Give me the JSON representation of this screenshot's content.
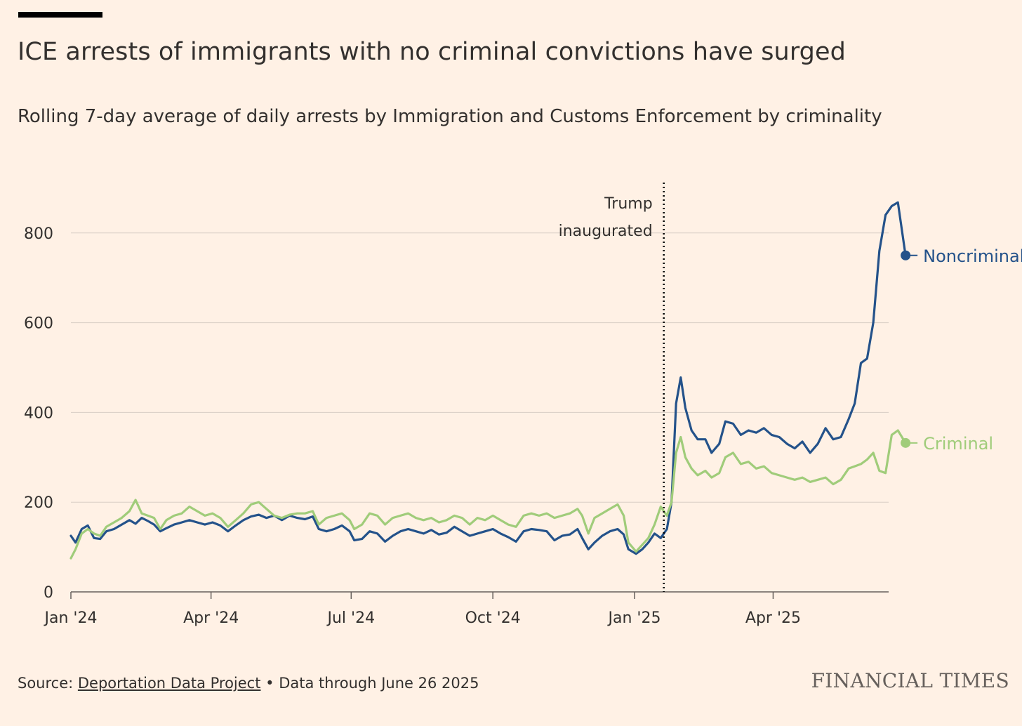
{
  "header": {
    "title": "ICE arrests of immigrants with no criminal convictions have surged",
    "subtitle": "Rolling 7-day average of daily arrests by Immigration and Customs Enforcement by criminality"
  },
  "footer": {
    "source_prefix": "Source: ",
    "source_link": "Deportation Data Project",
    "source_suffix": " • Data through June 26 2025",
    "brand": "FINANCIAL TIMES"
  },
  "chart_data": {
    "type": "line",
    "title": "ICE arrests of immigrants with no criminal convictions have surged",
    "subtitle": "Rolling 7-day average of daily arrests by Immigration and Customs Enforcement by criminality",
    "xlabel": "",
    "ylabel": "",
    "ylim": [
      0,
      900
    ],
    "xlim": [
      "2024-01-01",
      "2025-06-26"
    ],
    "yticks": [
      0,
      200,
      400,
      600,
      800
    ],
    "xticks": [
      {
        "date": "2024-01-01",
        "label": "Jan '24"
      },
      {
        "date": "2024-04-01",
        "label": "Apr '24"
      },
      {
        "date": "2024-07-01",
        "label": "Jul '24"
      },
      {
        "date": "2024-10-01",
        "label": "Oct '24"
      },
      {
        "date": "2025-01-01",
        "label": "Jan '25"
      },
      {
        "date": "2025-04-01",
        "label": "Apr '25"
      }
    ],
    "grid": true,
    "annotation": {
      "date": "2025-01-20",
      "lines": [
        "Trump",
        "inaugurated"
      ]
    },
    "series": [
      {
        "name": "Noncriminal",
        "color": "#24528a",
        "points": [
          [
            "2024-01-01",
            125
          ],
          [
            "2024-01-04",
            110
          ],
          [
            "2024-01-08",
            140
          ],
          [
            "2024-01-12",
            148
          ],
          [
            "2024-01-16",
            120
          ],
          [
            "2024-01-20",
            118
          ],
          [
            "2024-01-24",
            135
          ],
          [
            "2024-01-29",
            140
          ],
          [
            "2024-02-03",
            150
          ],
          [
            "2024-02-08",
            160
          ],
          [
            "2024-02-12",
            152
          ],
          [
            "2024-02-16",
            165
          ],
          [
            "2024-02-20",
            158
          ],
          [
            "2024-02-24",
            150
          ],
          [
            "2024-02-28",
            135
          ],
          [
            "2024-03-03",
            142
          ],
          [
            "2024-03-08",
            150
          ],
          [
            "2024-03-13",
            155
          ],
          [
            "2024-03-18",
            160
          ],
          [
            "2024-03-23",
            155
          ],
          [
            "2024-03-28",
            150
          ],
          [
            "2024-04-02",
            155
          ],
          [
            "2024-04-07",
            148
          ],
          [
            "2024-04-12",
            135
          ],
          [
            "2024-04-17",
            148
          ],
          [
            "2024-04-22",
            160
          ],
          [
            "2024-04-27",
            168
          ],
          [
            "2024-05-02",
            172
          ],
          [
            "2024-05-07",
            165
          ],
          [
            "2024-05-12",
            170
          ],
          [
            "2024-05-17",
            160
          ],
          [
            "2024-05-22",
            170
          ],
          [
            "2024-05-27",
            165
          ],
          [
            "2024-06-01",
            162
          ],
          [
            "2024-06-06",
            168
          ],
          [
            "2024-06-10",
            140
          ],
          [
            "2024-06-15",
            135
          ],
          [
            "2024-06-20",
            140
          ],
          [
            "2024-06-25",
            148
          ],
          [
            "2024-06-30",
            135
          ],
          [
            "2024-07-03",
            115
          ],
          [
            "2024-07-08",
            118
          ],
          [
            "2024-07-13",
            135
          ],
          [
            "2024-07-18",
            130
          ],
          [
            "2024-07-23",
            112
          ],
          [
            "2024-07-28",
            125
          ],
          [
            "2024-08-02",
            135
          ],
          [
            "2024-08-07",
            140
          ],
          [
            "2024-08-12",
            135
          ],
          [
            "2024-08-17",
            130
          ],
          [
            "2024-08-22",
            138
          ],
          [
            "2024-08-27",
            128
          ],
          [
            "2024-09-01",
            132
          ],
          [
            "2024-09-06",
            145
          ],
          [
            "2024-09-11",
            135
          ],
          [
            "2024-09-16",
            125
          ],
          [
            "2024-09-21",
            130
          ],
          [
            "2024-09-26",
            135
          ],
          [
            "2024-10-01",
            140
          ],
          [
            "2024-10-06",
            130
          ],
          [
            "2024-10-11",
            122
          ],
          [
            "2024-10-16",
            112
          ],
          [
            "2024-10-21",
            135
          ],
          [
            "2024-10-26",
            140
          ],
          [
            "2024-10-31",
            138
          ],
          [
            "2024-11-05",
            135
          ],
          [
            "2024-11-10",
            115
          ],
          [
            "2024-11-15",
            125
          ],
          [
            "2024-11-20",
            128
          ],
          [
            "2024-11-25",
            140
          ],
          [
            "2024-11-28",
            120
          ],
          [
            "2024-12-02",
            95
          ],
          [
            "2024-12-06",
            110
          ],
          [
            "2024-12-11",
            125
          ],
          [
            "2024-12-16",
            135
          ],
          [
            "2024-12-21",
            140
          ],
          [
            "2024-12-25",
            128
          ],
          [
            "2024-12-28",
            95
          ],
          [
            "2025-01-02",
            85
          ],
          [
            "2025-01-06",
            95
          ],
          [
            "2025-01-10",
            110
          ],
          [
            "2025-01-14",
            130
          ],
          [
            "2025-01-18",
            120
          ],
          [
            "2025-01-22",
            140
          ],
          [
            "2025-01-25",
            200
          ],
          [
            "2025-01-28",
            420
          ],
          [
            "2025-01-31",
            478
          ],
          [
            "2025-02-03",
            410
          ],
          [
            "2025-02-07",
            360
          ],
          [
            "2025-02-11",
            340
          ],
          [
            "2025-02-16",
            340
          ],
          [
            "2025-02-20",
            310
          ],
          [
            "2025-02-25",
            330
          ],
          [
            "2025-03-01",
            380
          ],
          [
            "2025-03-06",
            375
          ],
          [
            "2025-03-11",
            350
          ],
          [
            "2025-03-16",
            360
          ],
          [
            "2025-03-21",
            355
          ],
          [
            "2025-03-26",
            365
          ],
          [
            "2025-03-31",
            350
          ],
          [
            "2025-04-05",
            345
          ],
          [
            "2025-04-10",
            330
          ],
          [
            "2025-04-15",
            320
          ],
          [
            "2025-04-20",
            335
          ],
          [
            "2025-04-25",
            310
          ],
          [
            "2025-04-30",
            330
          ],
          [
            "2025-05-05",
            365
          ],
          [
            "2025-05-10",
            340
          ],
          [
            "2025-05-15",
            345
          ],
          [
            "2025-05-20",
            385
          ],
          [
            "2025-05-24",
            420
          ],
          [
            "2025-05-28",
            510
          ],
          [
            "2025-06-01",
            520
          ],
          [
            "2025-06-05",
            600
          ],
          [
            "2025-06-09",
            760
          ],
          [
            "2025-06-13",
            840
          ],
          [
            "2025-06-17",
            860
          ],
          [
            "2025-06-21",
            868
          ],
          [
            "2025-06-26",
            750
          ]
        ]
      },
      {
        "name": "Criminal",
        "color": "#a0cc7a",
        "points": [
          [
            "2024-01-01",
            75
          ],
          [
            "2024-01-04",
            95
          ],
          [
            "2024-01-08",
            130
          ],
          [
            "2024-01-12",
            140
          ],
          [
            "2024-01-16",
            130
          ],
          [
            "2024-01-20",
            125
          ],
          [
            "2024-01-24",
            145
          ],
          [
            "2024-01-29",
            155
          ],
          [
            "2024-02-03",
            165
          ],
          [
            "2024-02-08",
            180
          ],
          [
            "2024-02-12",
            205
          ],
          [
            "2024-02-16",
            175
          ],
          [
            "2024-02-20",
            170
          ],
          [
            "2024-02-24",
            165
          ],
          [
            "2024-02-28",
            140
          ],
          [
            "2024-03-03",
            160
          ],
          [
            "2024-03-08",
            170
          ],
          [
            "2024-03-13",
            175
          ],
          [
            "2024-03-18",
            190
          ],
          [
            "2024-03-23",
            180
          ],
          [
            "2024-03-28",
            170
          ],
          [
            "2024-04-02",
            175
          ],
          [
            "2024-04-07",
            165
          ],
          [
            "2024-04-12",
            145
          ],
          [
            "2024-04-17",
            160
          ],
          [
            "2024-04-22",
            175
          ],
          [
            "2024-04-27",
            195
          ],
          [
            "2024-05-02",
            200
          ],
          [
            "2024-05-07",
            185
          ],
          [
            "2024-05-12",
            170
          ],
          [
            "2024-05-17",
            165
          ],
          [
            "2024-05-22",
            172
          ],
          [
            "2024-05-27",
            175
          ],
          [
            "2024-06-01",
            175
          ],
          [
            "2024-06-06",
            180
          ],
          [
            "2024-06-10",
            150
          ],
          [
            "2024-06-15",
            165
          ],
          [
            "2024-06-20",
            170
          ],
          [
            "2024-06-25",
            175
          ],
          [
            "2024-06-30",
            160
          ],
          [
            "2024-07-03",
            140
          ],
          [
            "2024-07-08",
            150
          ],
          [
            "2024-07-13",
            175
          ],
          [
            "2024-07-18",
            170
          ],
          [
            "2024-07-23",
            150
          ],
          [
            "2024-07-28",
            165
          ],
          [
            "2024-08-02",
            170
          ],
          [
            "2024-08-07",
            175
          ],
          [
            "2024-08-12",
            165
          ],
          [
            "2024-08-17",
            160
          ],
          [
            "2024-08-22",
            165
          ],
          [
            "2024-08-27",
            155
          ],
          [
            "2024-09-01",
            160
          ],
          [
            "2024-09-06",
            170
          ],
          [
            "2024-09-11",
            165
          ],
          [
            "2024-09-16",
            150
          ],
          [
            "2024-09-21",
            165
          ],
          [
            "2024-09-26",
            160
          ],
          [
            "2024-10-01",
            170
          ],
          [
            "2024-10-06",
            160
          ],
          [
            "2024-10-11",
            150
          ],
          [
            "2024-10-16",
            145
          ],
          [
            "2024-10-21",
            170
          ],
          [
            "2024-10-26",
            175
          ],
          [
            "2024-10-31",
            170
          ],
          [
            "2024-11-05",
            175
          ],
          [
            "2024-11-10",
            165
          ],
          [
            "2024-11-15",
            170
          ],
          [
            "2024-11-20",
            175
          ],
          [
            "2024-11-25",
            185
          ],
          [
            "2024-11-28",
            170
          ],
          [
            "2024-12-02",
            130
          ],
          [
            "2024-12-06",
            165
          ],
          [
            "2024-12-11",
            175
          ],
          [
            "2024-12-16",
            185
          ],
          [
            "2024-12-21",
            195
          ],
          [
            "2024-12-25",
            170
          ],
          [
            "2024-12-28",
            110
          ],
          [
            "2025-01-02",
            90
          ],
          [
            "2025-01-06",
            105
          ],
          [
            "2025-01-10",
            120
          ],
          [
            "2025-01-14",
            150
          ],
          [
            "2025-01-18",
            190
          ],
          [
            "2025-01-22",
            170
          ],
          [
            "2025-01-25",
            200
          ],
          [
            "2025-01-28",
            310
          ],
          [
            "2025-01-31",
            345
          ],
          [
            "2025-02-03",
            300
          ],
          [
            "2025-02-07",
            275
          ],
          [
            "2025-02-11",
            260
          ],
          [
            "2025-02-16",
            270
          ],
          [
            "2025-02-20",
            255
          ],
          [
            "2025-02-25",
            265
          ],
          [
            "2025-03-01",
            300
          ],
          [
            "2025-03-06",
            310
          ],
          [
            "2025-03-11",
            285
          ],
          [
            "2025-03-16",
            290
          ],
          [
            "2025-03-21",
            275
          ],
          [
            "2025-03-26",
            280
          ],
          [
            "2025-03-31",
            265
          ],
          [
            "2025-04-05",
            260
          ],
          [
            "2025-04-10",
            255
          ],
          [
            "2025-04-15",
            250
          ],
          [
            "2025-04-20",
            255
          ],
          [
            "2025-04-25",
            245
          ],
          [
            "2025-04-30",
            250
          ],
          [
            "2025-05-05",
            255
          ],
          [
            "2025-05-10",
            240
          ],
          [
            "2025-05-15",
            250
          ],
          [
            "2025-05-20",
            275
          ],
          [
            "2025-05-24",
            280
          ],
          [
            "2025-05-28",
            285
          ],
          [
            "2025-06-01",
            295
          ],
          [
            "2025-06-05",
            310
          ],
          [
            "2025-06-09",
            270
          ],
          [
            "2025-06-13",
            265
          ],
          [
            "2025-06-17",
            350
          ],
          [
            "2025-06-21",
            360
          ],
          [
            "2025-06-26",
            332
          ]
        ]
      }
    ]
  }
}
